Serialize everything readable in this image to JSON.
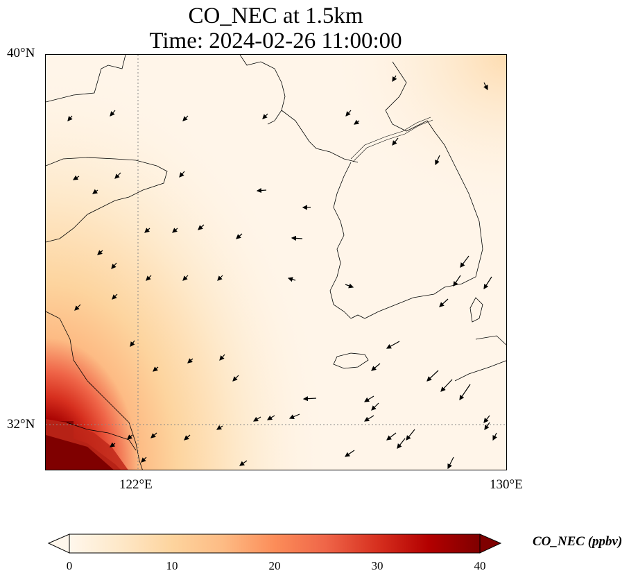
{
  "title": {
    "line1": "CO_NEC at 1.5km",
    "line2": "Time: 2024-02-26 11:00:00"
  },
  "map": {
    "lon_range": [
      121,
      130
    ],
    "lat_range": [
      31.1,
      40
    ],
    "lat_ticks": [
      {
        "value": 40,
        "label": "40°N"
      },
      {
        "value": 32,
        "label": "32°N"
      }
    ],
    "lon_ticks": [
      {
        "value": 122,
        "label": "122°E"
      },
      {
        "value": 130,
        "label": "130°E"
      }
    ],
    "gridlines": "dotted at 122°E and 32°N",
    "field": "CO_NEC concentration, mostly low (0–8 ppbv) with a high-value plume (35–40+ ppbv) at the southwest corner near the Yangtze estuary",
    "wind_vectors": "northwesterly flow over the Yellow Sea; stronger southwestward arrows near Korea and Japan"
  },
  "colorbar": {
    "label": "CO_NEC (ppbv)",
    "colormap": "OrRd",
    "min": 0,
    "max": 40,
    "extend": "both",
    "ticks": [
      "0",
      "10",
      "20",
      "30",
      "40"
    ],
    "colors": [
      "#fff7ec",
      "#fee8c8",
      "#fdd49e",
      "#fdbb84",
      "#fc8d59",
      "#ef6548",
      "#d7301f",
      "#b30000",
      "#7f0000"
    ]
  },
  "chart_data": {
    "type": "heatmap",
    "title": "CO_NEC at 1.5km\nTime: 2024-02-26 11:00:00",
    "x_ticks": [
      "122°E",
      "130°E"
    ],
    "y_ticks": [
      "40°N",
      "32°N"
    ],
    "color_scale": {
      "label": "CO_NEC (ppbv)",
      "min": 0,
      "max": 40,
      "ticks": [
        0,
        10,
        20,
        30,
        40
      ]
    },
    "regions": [
      {
        "area": "southwest corner (121–122°E, 31.1–32°N)",
        "value": 40
      },
      {
        "area": "coastal strip near 121–122°E, 32–33°N",
        "value": 15
      },
      {
        "area": "western edge near 35°N",
        "value": 10
      },
      {
        "area": "northeast corner near 130°E, 40°N",
        "value": 8
      },
      {
        "area": "open sea and Korean peninsula",
        "value": 3
      }
    ]
  }
}
